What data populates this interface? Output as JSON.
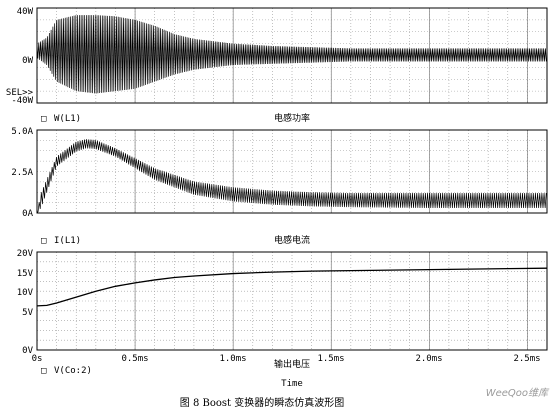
{
  "chart_data": [
    {
      "type": "line",
      "panel": "power",
      "series": [
        {
          "name": "W(L1)"
        }
      ],
      "xlim": [
        0,
        2.6
      ],
      "ylim": [
        -40,
        40
      ],
      "ytick_labels": [
        "40W",
        "0W",
        "-40W"
      ],
      "extra_label": "SEL>>",
      "legend_marker": "□",
      "legend_label": "W(L1)",
      "panel_label": "电感功率",
      "envelope": {
        "t": [
          0,
          0.05,
          0.1,
          0.2,
          0.3,
          0.4,
          0.5,
          0.6,
          0.7,
          0.8,
          1.0,
          1.2,
          1.4,
          1.6,
          2.0,
          2.4,
          2.6
        ],
        "max": [
          10,
          15,
          30,
          34,
          34,
          33,
          30,
          25,
          18,
          14,
          10,
          8,
          7,
          6,
          6,
          6,
          6
        ],
        "min": [
          -2,
          -8,
          -22,
          -30,
          -32,
          -30,
          -28,
          -22,
          -16,
          -12,
          -8,
          -7,
          -6,
          -5,
          -5,
          -5,
          -5
        ]
      },
      "grid": true
    },
    {
      "type": "line",
      "panel": "current",
      "series": [
        {
          "name": "I(L1)"
        }
      ],
      "xlim": [
        0,
        2.6
      ],
      "ylim": [
        0,
        5
      ],
      "ytick_labels": [
        "5.0A",
        "2.5A",
        "0A"
      ],
      "legend_marker": "□",
      "legend_label": "I(L1)",
      "panel_label": "电感电流",
      "envelope": {
        "t": [
          0,
          0.02,
          0.1,
          0.2,
          0.25,
          0.3,
          0.4,
          0.5,
          0.6,
          0.8,
          1.0,
          1.2,
          1.4,
          1.6,
          2.0,
          2.6
        ],
        "max": [
          0,
          1.2,
          3.4,
          4.3,
          4.45,
          4.4,
          3.9,
          3.3,
          2.7,
          1.9,
          1.55,
          1.35,
          1.25,
          1.2,
          1.2,
          1.2
        ],
        "min": [
          0,
          0.3,
          2.8,
          3.7,
          3.9,
          3.85,
          3.4,
          2.7,
          2.0,
          1.1,
          0.7,
          0.5,
          0.4,
          0.35,
          0.3,
          0.3
        ]
      },
      "grid": true
    },
    {
      "type": "line",
      "panel": "voltage",
      "series": [
        {
          "name": "V(Co:2)",
          "x": [
            0,
            0.05,
            0.1,
            0.2,
            0.3,
            0.4,
            0.5,
            0.6,
            0.7,
            0.8,
            1.0,
            1.2,
            1.4,
            1.6,
            1.8,
            2.0,
            2.2,
            2.4,
            2.6
          ],
          "y": [
            9.0,
            9.1,
            9.6,
            10.8,
            12.0,
            13.0,
            13.7,
            14.3,
            14.8,
            15.1,
            15.6,
            15.9,
            16.1,
            16.2,
            16.3,
            16.4,
            16.5,
            16.6,
            16.7
          ]
        }
      ],
      "xlim": [
        0,
        2.6
      ],
      "ylim": [
        0,
        20
      ],
      "ytick_labels": [
        "20V",
        "15V",
        "10V",
        "5V",
        "0V"
      ],
      "legend_marker": "□",
      "legend_label": "V(Co:2)",
      "panel_label": "输出电压",
      "grid": true
    }
  ],
  "x_axis": {
    "tick_labels": [
      "0s",
      "0.5ms",
      "1.0ms",
      "1.5ms",
      "2.0ms",
      "2.5ms"
    ],
    "tick_values": [
      0,
      0.5,
      1.0,
      1.5,
      2.0,
      2.5
    ],
    "xlabel": "Time"
  },
  "caption": "图 8 Boost 变换器的瞬态仿真波形图",
  "watermark": "WeeQoo维库"
}
